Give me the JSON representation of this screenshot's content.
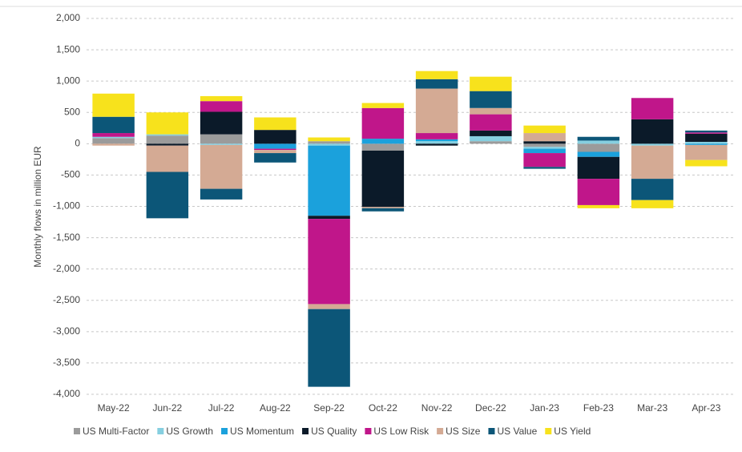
{
  "chart_data": {
    "type": "bar",
    "stacked": true,
    "ylabel": "Monthly flows in million EUR",
    "categories": [
      "May-22",
      "Jun-22",
      "Jul-22",
      "Aug-22",
      "Sep-22",
      "Oct-22",
      "Nov-22",
      "Dec-22",
      "Jan-23",
      "Feb-23",
      "Mar-23",
      "Apr-23"
    ],
    "ylim": [
      -4000,
      2000
    ],
    "yticks": [
      {
        "value": 2000,
        "label": "2,000"
      },
      {
        "value": 1500,
        "label": "1,500"
      },
      {
        "value": 1000,
        "label": "1,000"
      },
      500,
      0,
      -500,
      {
        "value": -1000,
        "label": "-1,000"
      },
      {
        "value": -1500,
        "label": "-1,500"
      },
      {
        "value": -2000,
        "label": "-2,000"
      },
      {
        "value": -2500,
        "label": "-2,500"
      },
      {
        "value": -3000,
        "label": "-3,000"
      },
      {
        "value": -3500,
        "label": "-3,500"
      },
      {
        "value": -4000,
        "label": "-4,000"
      }
    ],
    "grid": true,
    "legend": "bottom",
    "series": [
      {
        "name": "US Multi-Factor",
        "color": "#9b9b9b",
        "values": [
          90,
          130,
          150,
          0,
          40,
          -110,
          0,
          40,
          -50,
          -130,
          0,
          0
        ]
      },
      {
        "name": "US Growth",
        "color": "#86cfe0",
        "values": [
          20,
          20,
          -20,
          0,
          -30,
          0,
          40,
          80,
          -30,
          50,
          -30,
          30
        ]
      },
      {
        "name": "US Momentum",
        "color": "#1ba1dc",
        "values": [
          0,
          0,
          0,
          -80,
          -1120,
          80,
          30,
          0,
          -70,
          -80,
          0,
          -20
        ]
      },
      {
        "name": "US Quality",
        "color": "#0b1a29",
        "values": [
          0,
          -30,
          360,
          220,
          -50,
          -900,
          -30,
          90,
          40,
          -350,
          390,
          130
        ]
      },
      {
        "name": "US Low Risk",
        "color": "#c0168a",
        "values": [
          60,
          0,
          170,
          -20,
          -1360,
          490,
          100,
          260,
          -220,
          -420,
          340,
          20
        ]
      },
      {
        "name": "US Size",
        "color": "#d4aa94",
        "values": [
          -30,
          -420,
          -700,
          -50,
          -80,
          -20,
          710,
          100,
          130,
          0,
          -530,
          -240
        ]
      },
      {
        "name": "US Value",
        "color": "#0c5678",
        "values": [
          260,
          -740,
          -170,
          -150,
          -1240,
          -50,
          150,
          270,
          -30,
          60,
          -340,
          30
        ]
      },
      {
        "name": "US Yield",
        "color": "#f7e21c",
        "values": [
          370,
          350,
          80,
          200,
          60,
          80,
          130,
          230,
          120,
          -50,
          -130,
          -100
        ]
      }
    ]
  }
}
